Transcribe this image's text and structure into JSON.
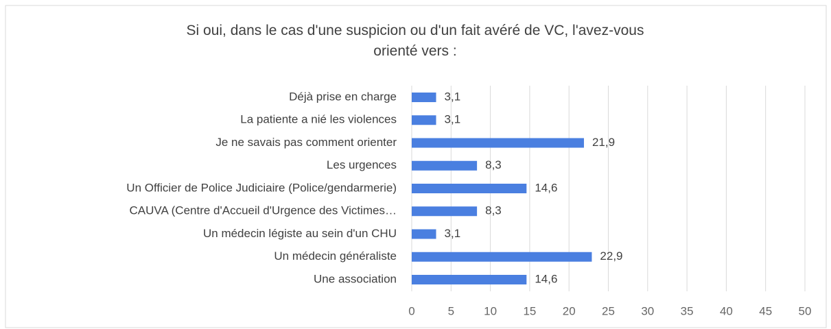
{
  "chart_data": {
    "type": "bar",
    "orientation": "horizontal",
    "title": "Si oui, dans le cas d'une suspicion ou d'un fait avéré de VC, l'avez-vous orienté vers :",
    "categories": [
      "Déjà prise en charge",
      "La patiente a nié les violences",
      "Je ne savais pas comment orienter",
      "Les urgences",
      "Un Officier de Police Judiciaire (Police/gendarmerie)",
      "CAUVA (Centre d'Accueil d'Urgence des Victimes…",
      "Un médecin légiste au sein d'un CHU",
      "Un médecin généraliste",
      "Une association"
    ],
    "values": [
      3.1,
      3.1,
      21.9,
      8.3,
      14.6,
      8.3,
      3.1,
      22.9,
      14.6
    ],
    "value_labels": [
      "3,1",
      "3,1",
      "21,9",
      "8,3",
      "14,6",
      "8,3",
      "3,1",
      "22,9",
      "14,6"
    ],
    "color": "#4a7fe0",
    "xlim": [
      0,
      50
    ],
    "xticks": [
      0,
      5,
      10,
      15,
      20,
      25,
      30,
      35,
      40,
      45,
      50
    ],
    "grid": true
  }
}
